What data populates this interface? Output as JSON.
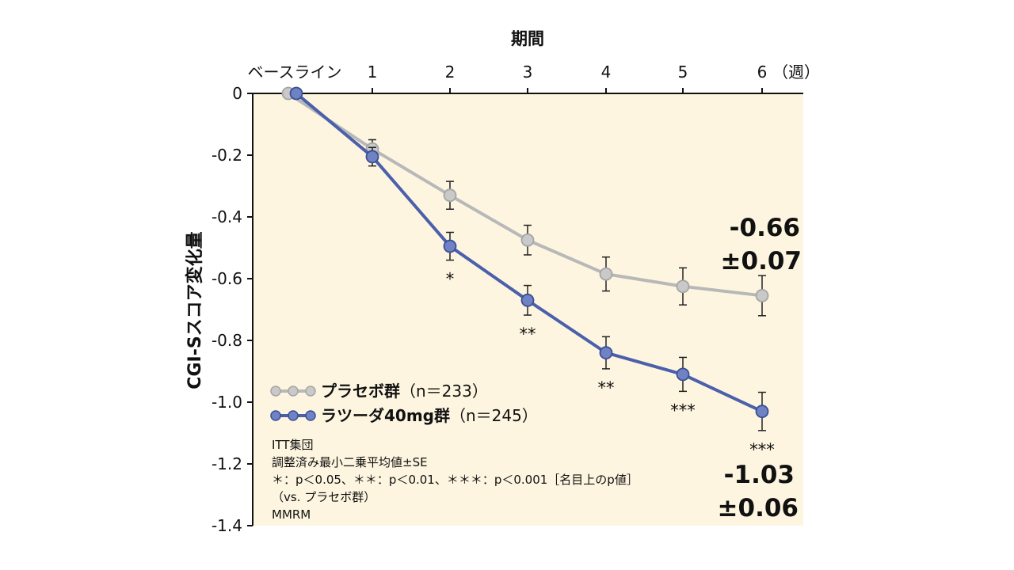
{
  "chart_data": {
    "type": "line",
    "title": "",
    "xlabel": "期間",
    "x_unit": "（週）",
    "ylabel": "CGI-Sスコア変化量",
    "categories": [
      "ベースライン",
      "1",
      "2",
      "3",
      "4",
      "5",
      "6"
    ],
    "ylim": [
      -1.4,
      0
    ],
    "yticks": [
      0,
      -0.2,
      -0.4,
      -0.6,
      -0.8,
      -1.0,
      -1.2,
      -1.4
    ],
    "ytick_labels": [
      "0",
      "-0.2",
      "-0.4",
      "-0.6",
      "-0.8",
      "-1.0",
      "-1.2",
      "-1.4"
    ],
    "series": [
      {
        "name": "プラセボ群",
        "n_label": "（n＝233）",
        "color": "#b8b8b8",
        "values": [
          0,
          -0.18,
          -0.33,
          -0.475,
          -0.585,
          -0.625,
          -0.655
        ],
        "se": [
          0,
          0.03,
          0.045,
          0.048,
          0.055,
          0.06,
          0.065
        ],
        "final_label": [
          "-0.66",
          "±0.07"
        ]
      },
      {
        "name": "ラツーダ40mg群",
        "n_label": "（n＝245）",
        "color": "#4a60aa",
        "values": [
          0,
          -0.205,
          -0.495,
          -0.67,
          -0.84,
          -0.91,
          -1.03
        ],
        "se": [
          0,
          0.03,
          0.045,
          0.048,
          0.052,
          0.055,
          0.062
        ],
        "significance": [
          "",
          "",
          "*",
          "**",
          "**",
          "***",
          "***"
        ],
        "final_label": [
          "-1.03",
          "±0.06"
        ]
      }
    ],
    "grid": false,
    "legend_position": "bottom-left",
    "background": "#fdf5e0",
    "axis_color": "#111111"
  },
  "notes": [
    "ITT集団",
    "調整済み最小二乗平均値±SE",
    "＊：p＜0.05、＊＊：p＜0.01、＊＊＊：p＜0.001［名目上のp値］",
    "（vs. プラセボ群）",
    "MMRM"
  ]
}
